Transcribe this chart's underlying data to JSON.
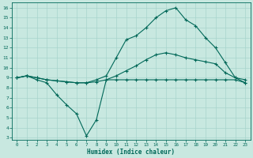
{
  "xlabel": "Humidex (Indice chaleur)",
  "bg_color": "#c8e8e0",
  "grid_color": "#a8d4cc",
  "line_color": "#006858",
  "xlim": [
    -0.5,
    23.5
  ],
  "ylim": [
    2.8,
    16.5
  ],
  "xticks": [
    0,
    1,
    2,
    3,
    4,
    5,
    6,
    7,
    8,
    9,
    10,
    11,
    12,
    13,
    14,
    15,
    16,
    17,
    18,
    19,
    20,
    21,
    22,
    23
  ],
  "yticks": [
    3,
    4,
    5,
    6,
    7,
    8,
    9,
    10,
    11,
    12,
    13,
    14,
    15,
    16
  ],
  "series_low_x": [
    0,
    1,
    2,
    3,
    4,
    5,
    6,
    7,
    8,
    9,
    10,
    11,
    12,
    13,
    14,
    15,
    16,
    17,
    18,
    19,
    20,
    21,
    22,
    23
  ],
  "series_low_y": [
    9.0,
    9.2,
    8.8,
    8.5,
    7.3,
    6.3,
    5.4,
    3.2,
    4.8,
    8.8,
    8.8,
    8.8,
    8.8,
    8.8,
    8.8,
    8.8,
    8.8,
    8.8,
    8.8,
    8.8,
    8.8,
    8.8,
    8.8,
    8.5
  ],
  "series_mid_x": [
    0,
    1,
    2,
    3,
    4,
    5,
    6,
    7,
    8,
    9,
    10,
    11,
    12,
    13,
    14,
    15,
    16,
    17,
    18,
    19,
    20,
    21,
    22,
    23
  ],
  "series_mid_y": [
    9.0,
    9.2,
    9.0,
    8.8,
    8.7,
    8.6,
    8.5,
    8.5,
    8.6,
    8.8,
    9.2,
    9.7,
    10.2,
    10.8,
    11.3,
    11.5,
    11.3,
    11.0,
    10.8,
    10.6,
    10.4,
    9.5,
    9.0,
    8.8
  ],
  "series_high_x": [
    0,
    1,
    2,
    3,
    4,
    5,
    6,
    7,
    8,
    9,
    10,
    11,
    12,
    13,
    14,
    15,
    16,
    17,
    18,
    19,
    20,
    21,
    22,
    23
  ],
  "series_high_y": [
    9.0,
    9.2,
    9.0,
    8.8,
    8.7,
    8.6,
    8.5,
    8.5,
    8.8,
    9.2,
    11.0,
    12.8,
    13.2,
    14.0,
    15.0,
    15.7,
    16.0,
    14.8,
    14.2,
    13.0,
    12.0,
    10.5,
    9.0,
    8.5
  ]
}
